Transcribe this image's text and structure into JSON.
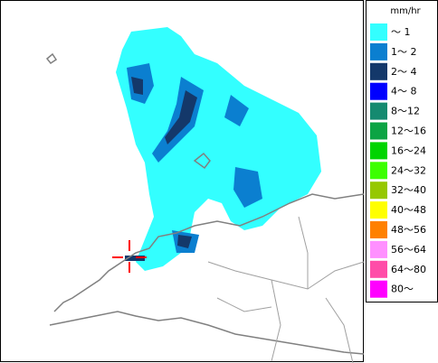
{
  "legend": {
    "unit": "mm/hr",
    "items": [
      {
        "label": "～ 1",
        "color": "#33ffff"
      },
      {
        "label": "1～ 2",
        "color": "#0b7fd0"
      },
      {
        "label": "2～ 4",
        "color": "#14386a"
      },
      {
        "label": "4～ 8",
        "color": "#0000ff"
      },
      {
        "label": "8～12",
        "color": "#158a70"
      },
      {
        "label": "12～16",
        "color": "#0ca444"
      },
      {
        "label": "16～24",
        "color": "#00d400"
      },
      {
        "label": "24～32",
        "color": "#3cff00"
      },
      {
        "label": "32～40",
        "color": "#96c800"
      },
      {
        "label": "40～48",
        "color": "#ffff00"
      },
      {
        "label": "48～56",
        "color": "#ff8000"
      },
      {
        "label": "56～64",
        "color": "#ff90ff"
      },
      {
        "label": "64～80",
        "color": "#ff4ca8"
      },
      {
        "label": "80～",
        "color": "#ff00ff"
      }
    ]
  }
}
